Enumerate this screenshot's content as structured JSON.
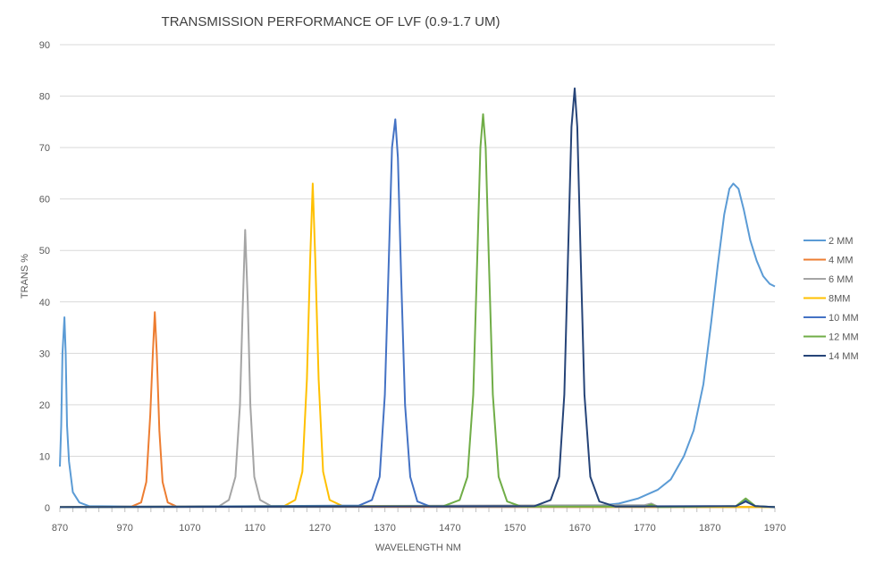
{
  "chart_data": {
    "type": "line",
    "title": "TRANSMISSION PERFORMANCE OF LVF (0.9-1.7 UM)",
    "xlabel": "WAVELENGTH  NM",
    "ylabel": "TRANS  %",
    "xlim": [
      870,
      1970
    ],
    "ylim": [
      0,
      90
    ],
    "xticks": [
      870,
      970,
      1070,
      1170,
      1270,
      1370,
      1470,
      1570,
      1670,
      1770,
      1870,
      1970
    ],
    "yticks": [
      0,
      10,
      20,
      30,
      40,
      50,
      60,
      70,
      80,
      90
    ],
    "grid": "horizontal",
    "legend_position": "right",
    "series": [
      {
        "name": "2 MM",
        "color": "#5B9BD5",
        "points": [
          [
            870,
            8
          ],
          [
            872,
            16
          ],
          [
            874,
            30
          ],
          [
            877,
            37
          ],
          [
            879,
            30
          ],
          [
            881,
            16
          ],
          [
            884,
            9
          ],
          [
            890,
            3
          ],
          [
            900,
            1
          ],
          [
            915,
            0.3
          ],
          [
            1000,
            0.2
          ],
          [
            1100,
            0.2
          ],
          [
            1300,
            0.2
          ],
          [
            1500,
            0.2
          ],
          [
            1650,
            0.2
          ],
          [
            1700,
            0.4
          ],
          [
            1730,
            0.8
          ],
          [
            1760,
            1.8
          ],
          [
            1790,
            3.5
          ],
          [
            1810,
            5.5
          ],
          [
            1830,
            10
          ],
          [
            1845,
            15
          ],
          [
            1860,
            24
          ],
          [
            1872,
            36
          ],
          [
            1882,
            47
          ],
          [
            1892,
            57
          ],
          [
            1900,
            62
          ],
          [
            1906,
            63
          ],
          [
            1914,
            62
          ],
          [
            1922,
            58
          ],
          [
            1932,
            52
          ],
          [
            1942,
            48
          ],
          [
            1952,
            45
          ],
          [
            1962,
            43.5
          ],
          [
            1970,
            43
          ]
        ]
      },
      {
        "name": "4 MM",
        "color": "#ED7D31",
        "points": [
          [
            870,
            0.1
          ],
          [
            980,
            0.2
          ],
          [
            995,
            1
          ],
          [
            1003,
            5
          ],
          [
            1009,
            18
          ],
          [
            1013,
            30
          ],
          [
            1016,
            38
          ],
          [
            1019,
            30
          ],
          [
            1023,
            15
          ],
          [
            1028,
            5
          ],
          [
            1036,
            1
          ],
          [
            1050,
            0.2
          ],
          [
            1970,
            0.1
          ]
        ]
      },
      {
        "name": "6 MM",
        "color": "#A5A5A5",
        "points": [
          [
            870,
            0.1
          ],
          [
            1115,
            0.3
          ],
          [
            1130,
            1.5
          ],
          [
            1140,
            6
          ],
          [
            1147,
            20
          ],
          [
            1151,
            38
          ],
          [
            1155,
            54
          ],
          [
            1159,
            40
          ],
          [
            1163,
            20
          ],
          [
            1169,
            6
          ],
          [
            1178,
            1.5
          ],
          [
            1195,
            0.3
          ],
          [
            1770,
            0.5
          ],
          [
            1780,
            0.8
          ],
          [
            1790,
            0.2
          ],
          [
            1970,
            0.1
          ]
        ]
      },
      {
        "name": "8MM",
        "color": "#FFC000",
        "points": [
          [
            870,
            0.1
          ],
          [
            1215,
            0.3
          ],
          [
            1232,
            1.5
          ],
          [
            1243,
            7
          ],
          [
            1250,
            25
          ],
          [
            1255,
            48
          ],
          [
            1259,
            63
          ],
          [
            1263,
            48
          ],
          [
            1268,
            25
          ],
          [
            1275,
            7
          ],
          [
            1285,
            1.5
          ],
          [
            1305,
            0.3
          ],
          [
            1970,
            0.1
          ]
        ]
      },
      {
        "name": "10 MM",
        "color": "#4472C4",
        "points": [
          [
            870,
            0.1
          ],
          [
            1330,
            0.4
          ],
          [
            1350,
            1.5
          ],
          [
            1362,
            6
          ],
          [
            1370,
            22
          ],
          [
            1376,
            48
          ],
          [
            1381,
            70
          ],
          [
            1386,
            75.5
          ],
          [
            1390,
            68
          ],
          [
            1395,
            45
          ],
          [
            1401,
            20
          ],
          [
            1409,
            6
          ],
          [
            1420,
            1.2
          ],
          [
            1440,
            0.2
          ],
          [
            1910,
            0.3
          ],
          [
            1925,
            1.4
          ],
          [
            1940,
            0.3
          ],
          [
            1970,
            0.1
          ]
        ]
      },
      {
        "name": "12 MM",
        "color": "#70AD47",
        "points": [
          [
            870,
            0.1
          ],
          [
            1460,
            0.3
          ],
          [
            1485,
            1.5
          ],
          [
            1497,
            6
          ],
          [
            1506,
            22
          ],
          [
            1512,
            48
          ],
          [
            1517,
            70
          ],
          [
            1521,
            76.5
          ],
          [
            1525,
            70
          ],
          [
            1530,
            48
          ],
          [
            1536,
            22
          ],
          [
            1545,
            6
          ],
          [
            1558,
            1.2
          ],
          [
            1580,
            0.2
          ],
          [
            1770,
            0.2
          ],
          [
            1780,
            0.6
          ],
          [
            1790,
            0.1
          ],
          [
            1910,
            0.3
          ],
          [
            1925,
            1.8
          ],
          [
            1940,
            0.3
          ],
          [
            1970,
            0.1
          ]
        ]
      },
      {
        "name": "14 MM",
        "color": "#264478",
        "points": [
          [
            870,
            0.1
          ],
          [
            1600,
            0.3
          ],
          [
            1625,
            1.5
          ],
          [
            1638,
            6
          ],
          [
            1646,
            22
          ],
          [
            1652,
            50
          ],
          [
            1657,
            74
          ],
          [
            1662,
            81.5
          ],
          [
            1666,
            74
          ],
          [
            1671,
            50
          ],
          [
            1677,
            22
          ],
          [
            1686,
            6
          ],
          [
            1700,
            1.2
          ],
          [
            1725,
            0.2
          ],
          [
            1910,
            0.3
          ],
          [
            1925,
            1.2
          ],
          [
            1940,
            0.3
          ],
          [
            1970,
            0.1
          ]
        ]
      }
    ]
  }
}
